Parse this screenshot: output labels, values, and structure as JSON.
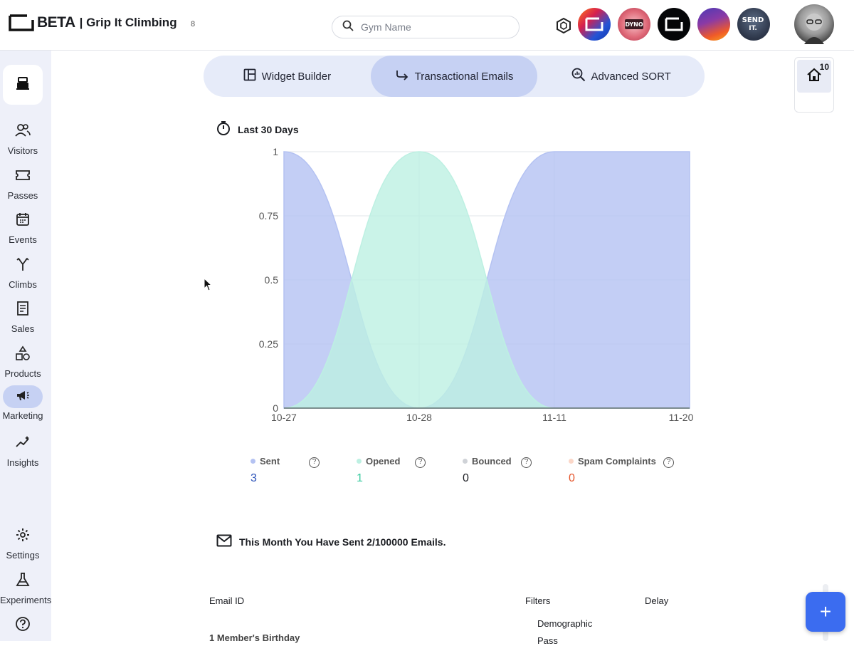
{
  "header": {
    "brand": "BETA",
    "gym_name": "| Grip It Climbing",
    "count": "8",
    "search_placeholder": "Gym Name",
    "gym_avatars": [
      "beta-gradient-avatar",
      "dyno-core-avatar",
      "beta-dark-avatar",
      "purple-gradient-avatar",
      "send-it-avatar"
    ]
  },
  "sidebar": {
    "items": [
      {
        "label": "Visitors",
        "icon": "people-icon"
      },
      {
        "label": "Passes",
        "icon": "ticket-icon"
      },
      {
        "label": "Events",
        "icon": "calendar-icon"
      },
      {
        "label": "Climbs",
        "icon": "route-icon"
      },
      {
        "label": "Sales",
        "icon": "receipt-icon"
      },
      {
        "label": "Products",
        "icon": "shapes-icon"
      },
      {
        "label": "Marketing",
        "icon": "megaphone-icon",
        "active": true
      },
      {
        "label": "Insights",
        "icon": "sparkle-chart-icon"
      },
      {
        "label": "Settings",
        "icon": "gear-icon"
      },
      {
        "label": "Experiments",
        "icon": "flask-icon"
      },
      {
        "label": "",
        "icon": "help-icon"
      }
    ]
  },
  "tabs": [
    {
      "label": "Widget Builder",
      "icon": "layout-icon"
    },
    {
      "label": "Transactional Emails",
      "icon": "forward-arrow-icon",
      "active": true
    },
    {
      "label": "Advanced SORT",
      "icon": "magnify-chart-icon"
    }
  ],
  "right_panel": {
    "count": "10"
  },
  "range": {
    "label": "Last 30 Days"
  },
  "chart_data": {
    "type": "area",
    "categories": [
      "10-27",
      "10-28",
      "11-11",
      "11-20"
    ],
    "series": [
      {
        "name": "Sent",
        "values": [
          1,
          0,
          1,
          1
        ],
        "color": "#b4c2f2"
      },
      {
        "name": "Opened",
        "values": [
          0,
          1,
          0,
          0
        ],
        "color": "#bdf0e2"
      }
    ],
    "ylim": [
      0,
      1
    ],
    "yticks": [
      "0",
      "0.25",
      "0.5",
      "0.75",
      "1"
    ],
    "grid": true
  },
  "legend": [
    {
      "label": "Sent",
      "value": "3",
      "color": "#b4c2f2",
      "value_color": "#2b52b8"
    },
    {
      "label": "Opened",
      "value": "1",
      "color": "#bdf0e2",
      "value_color": "#3ccba1"
    },
    {
      "label": "Bounced",
      "value": "0",
      "color": "#cfd2d7",
      "value_color": "#1b1d22"
    },
    {
      "label": "Spam Complaints",
      "value": "0",
      "color": "#fbd7c8",
      "value_color": "#e5542a"
    }
  ],
  "sent_message": "This Month You Have Sent 2/100000 Emails.",
  "table": {
    "headers": [
      "Email ID",
      "Filters",
      "Delay"
    ],
    "row_name": "1 Member's Birthday",
    "filters": [
      "Demographic",
      "Pass"
    ]
  },
  "fab_label": "+"
}
